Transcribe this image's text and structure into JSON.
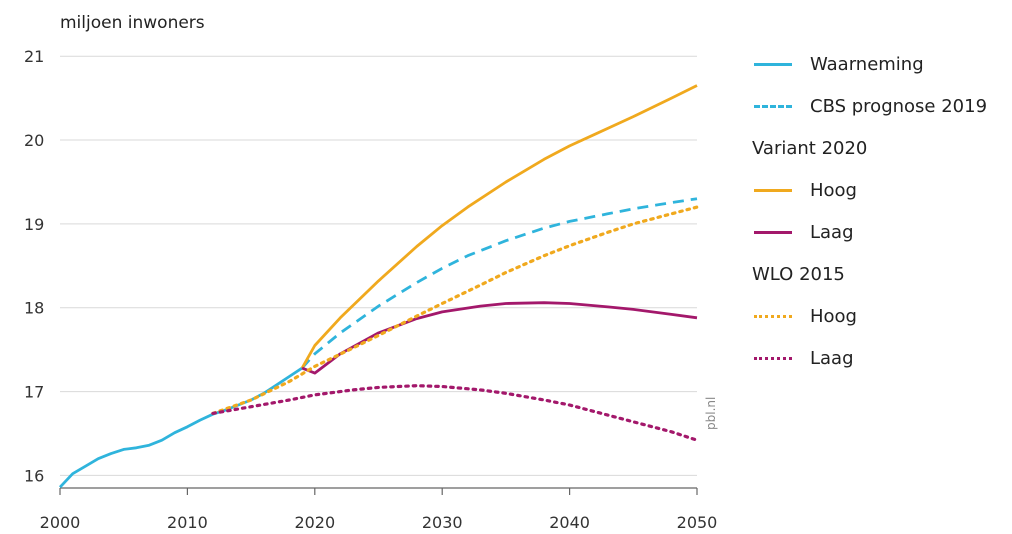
{
  "chart_data": {
    "type": "line",
    "ylabel": "miljoen inwoners",
    "xlim": [
      2000,
      2050
    ],
    "ylim": [
      15.85,
      21.05
    ],
    "x_ticks": [
      2000,
      2010,
      2020,
      2030,
      2040,
      2050
    ],
    "y_ticks": [
      16,
      17,
      18,
      19,
      20,
      21
    ],
    "grid": "horizontal",
    "legend_position": "right",
    "colors": {
      "blue": "#2fb4dc",
      "orange": "#f0a91e",
      "purple": "#a3186b",
      "grid": "#d9d9d9",
      "axis": "#666666"
    },
    "series": [
      {
        "name": "Waarneming",
        "color": "#2fb4dc",
        "style": "solid",
        "x": [
          2000,
          2001,
          2002,
          2003,
          2004,
          2005,
          2006,
          2007,
          2008,
          2009,
          2010,
          2011,
          2012,
          2013,
          2014,
          2015,
          2016,
          2017,
          2018,
          2019
        ],
        "y": [
          15.86,
          16.02,
          16.11,
          16.2,
          16.26,
          16.31,
          16.33,
          16.36,
          16.42,
          16.51,
          16.58,
          16.66,
          16.73,
          16.78,
          16.84,
          16.9,
          16.98,
          17.08,
          17.18,
          17.28
        ]
      },
      {
        "name": "CBS prognose 2019",
        "color": "#2fb4dc",
        "style": "dashed",
        "x": [
          2019,
          2020,
          2022,
          2025,
          2028,
          2030,
          2032,
          2035,
          2038,
          2040,
          2043,
          2045,
          2047,
          2050
        ],
        "y": [
          17.28,
          17.45,
          17.7,
          18.02,
          18.3,
          18.47,
          18.62,
          18.8,
          18.95,
          19.03,
          19.12,
          19.18,
          19.23,
          19.3
        ]
      },
      {
        "name": "Hoog",
        "group": "Variant 2020",
        "color": "#f0a91e",
        "style": "solid",
        "x": [
          2019,
          2020,
          2022,
          2025,
          2028,
          2030,
          2032,
          2035,
          2038,
          2040,
          2042,
          2045,
          2048,
          2050
        ],
        "y": [
          17.28,
          17.55,
          17.88,
          18.32,
          18.73,
          18.98,
          19.2,
          19.5,
          19.77,
          19.93,
          20.07,
          20.28,
          20.5,
          20.65
        ]
      },
      {
        "name": "Laag",
        "group": "Variant 2020",
        "color": "#a3186b",
        "style": "solid",
        "x": [
          2019,
          2020,
          2022,
          2025,
          2028,
          2030,
          2033,
          2035,
          2038,
          2040,
          2043,
          2045,
          2048,
          2050
        ],
        "y": [
          17.28,
          17.22,
          17.45,
          17.7,
          17.87,
          17.95,
          18.02,
          18.05,
          18.06,
          18.05,
          18.01,
          17.98,
          17.92,
          17.88
        ]
      },
      {
        "name": "Hoog",
        "group": "WLO 2015",
        "color": "#f0a91e",
        "style": "dotted",
        "x": [
          2012,
          2015,
          2018,
          2020,
          2023,
          2025,
          2028,
          2030,
          2033,
          2035,
          2038,
          2040,
          2043,
          2045,
          2048,
          2050
        ],
        "y": [
          16.74,
          16.9,
          17.12,
          17.3,
          17.52,
          17.67,
          17.9,
          18.05,
          18.27,
          18.42,
          18.62,
          18.74,
          18.9,
          19.0,
          19.12,
          19.2
        ]
      },
      {
        "name": "Laag",
        "group": "WLO 2015",
        "color": "#a3186b",
        "style": "dotted",
        "x": [
          2012,
          2015,
          2018,
          2020,
          2023,
          2025,
          2028,
          2030,
          2033,
          2035,
          2038,
          2040,
          2043,
          2045,
          2048,
          2050
        ],
        "y": [
          16.74,
          16.82,
          16.9,
          16.96,
          17.02,
          17.05,
          17.07,
          17.06,
          17.02,
          16.98,
          16.9,
          16.84,
          16.72,
          16.64,
          16.52,
          16.42
        ]
      }
    ]
  },
  "legend": {
    "items": [
      {
        "type": "entry",
        "label": "Waarneming",
        "color": "#2fb4dc",
        "style": "solid"
      },
      {
        "type": "entry",
        "label": "CBS prognose 2019",
        "color": "#2fb4dc",
        "style": "dashed"
      },
      {
        "type": "group",
        "label": "Variant 2020"
      },
      {
        "type": "entry",
        "label": "Hoog",
        "color": "#f0a91e",
        "style": "solid"
      },
      {
        "type": "entry",
        "label": "Laag",
        "color": "#a3186b",
        "style": "solid"
      },
      {
        "type": "group",
        "label": "WLO 2015"
      },
      {
        "type": "entry",
        "label": "Hoog",
        "color": "#f0a91e",
        "style": "dotted"
      },
      {
        "type": "entry",
        "label": "Laag",
        "color": "#a3186b",
        "style": "dotted"
      }
    ]
  },
  "credit": "pbl.nl"
}
